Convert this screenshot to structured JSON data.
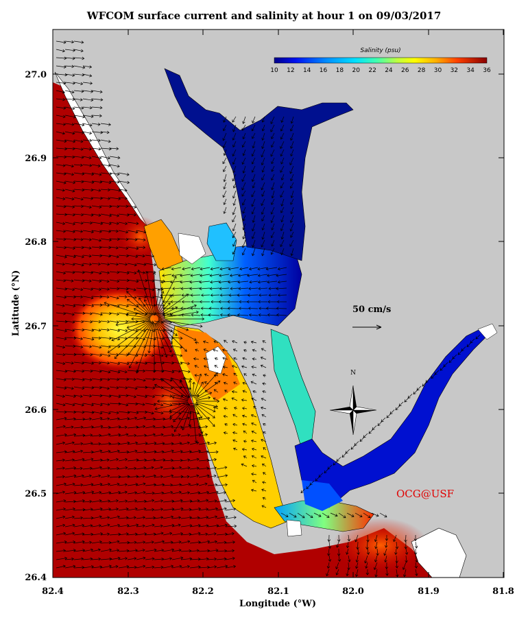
{
  "title": "WFCOM surface current and salinity at hour 1 on 09/03/2017",
  "x_axis": {
    "label": "Longitude (°W)",
    "ticks": [
      "82.4",
      "82.3",
      "82.2",
      "82.1",
      "82.0",
      "81.9",
      "81.8"
    ]
  },
  "y_axis": {
    "label": "Latitude (°N)",
    "ticks": [
      "27.0",
      "26.9",
      "26.8",
      "26.7",
      "26.6",
      "26.5",
      "26.4"
    ]
  },
  "colorbar": {
    "title": "Salinity (psu)",
    "labels": [
      "10",
      "12",
      "14",
      "16",
      "18",
      "20",
      "22",
      "24",
      "26",
      "28",
      "30",
      "32",
      "34",
      "36"
    ]
  },
  "scale_arrow_label": "50 cm/s",
  "north_label": "N",
  "watermark": "OCG@USF",
  "colors": {
    "land": "#c8c8c8",
    "high_salinity": "#a50000",
    "low_salinity": "#00008a"
  }
}
